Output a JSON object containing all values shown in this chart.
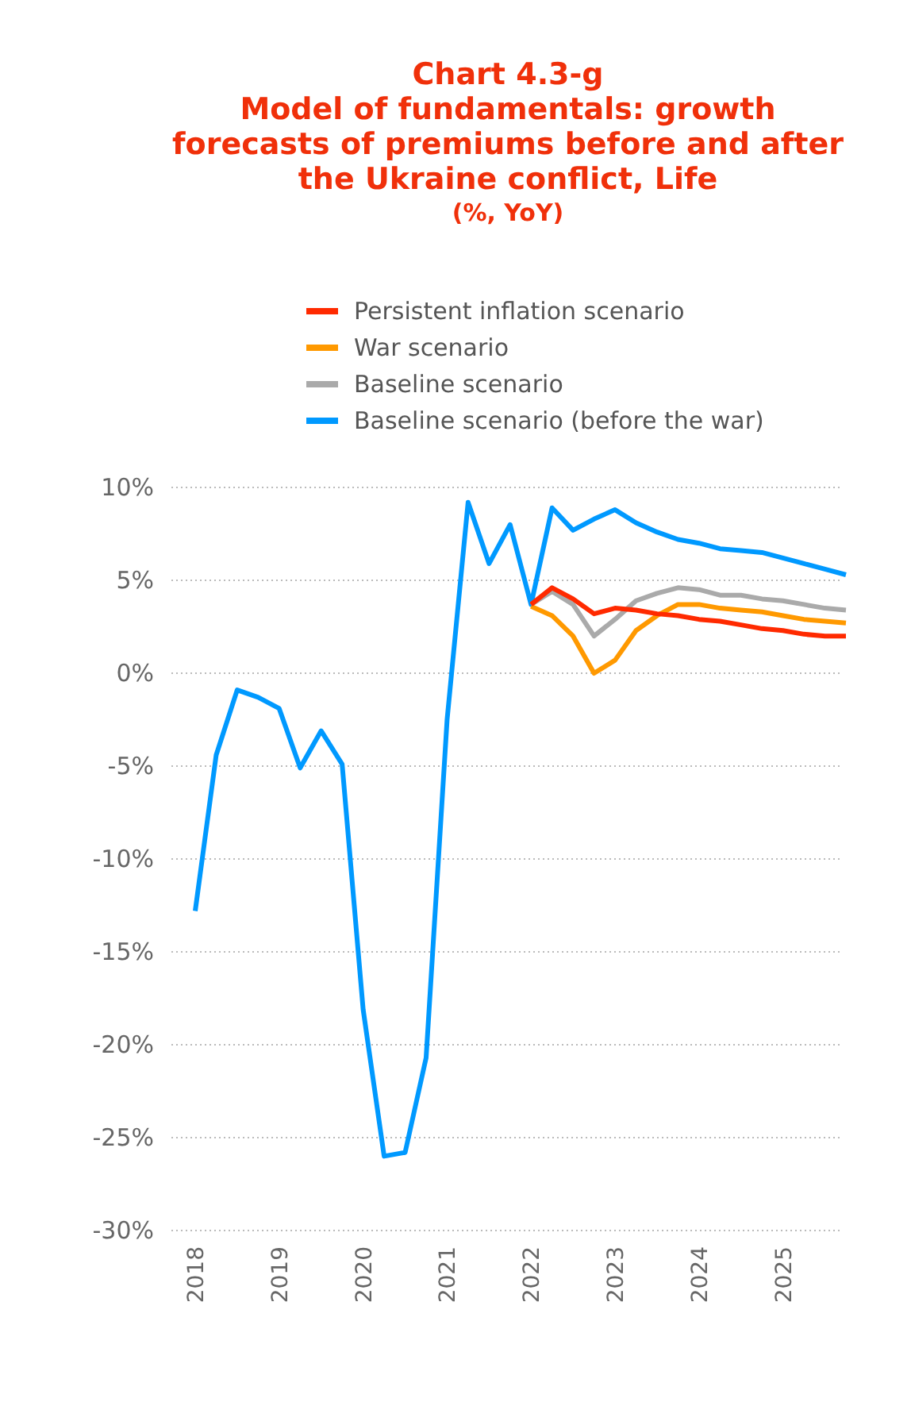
{
  "chart_data": {
    "type": "line",
    "title": "Chart 4.3-g\nModel of fundamentals: growth\nforecasts of premiums before and after\nthe Ukraine conflict, Life",
    "subtitle": "(%, YoY)",
    "categories": [
      "2018",
      null,
      null,
      null,
      "2019",
      null,
      null,
      null,
      "2020",
      null,
      null,
      null,
      "2021",
      null,
      null,
      null,
      "2022",
      null,
      null,
      null,
      "2023",
      null,
      null,
      null,
      "2024",
      null,
      null,
      null,
      "2025",
      null,
      null,
      null
    ],
    "series": [
      {
        "name": "Persistent inflation scenario",
        "color": "#ff2a00",
        "values": [
          null,
          null,
          null,
          null,
          null,
          null,
          null,
          null,
          null,
          null,
          null,
          null,
          null,
          null,
          null,
          null,
          3.7,
          4.6,
          4.0,
          3.2,
          3.5,
          3.4,
          3.2,
          3.1,
          2.9,
          2.8,
          2.6,
          2.4,
          2.3,
          2.1,
          2.0,
          2.0
        ]
      },
      {
        "name": "War scenario",
        "color": "#ff9900",
        "values": [
          null,
          null,
          null,
          null,
          null,
          null,
          null,
          null,
          null,
          null,
          null,
          null,
          null,
          null,
          null,
          null,
          3.6,
          3.1,
          2.0,
          0.0,
          0.7,
          2.3,
          3.1,
          3.7,
          3.7,
          3.5,
          3.4,
          3.3,
          3.1,
          2.9,
          2.8,
          2.7
        ]
      },
      {
        "name": "Baseline scenario",
        "color": "#aaaaaa",
        "values": [
          null,
          null,
          null,
          null,
          null,
          null,
          null,
          null,
          null,
          null,
          null,
          null,
          null,
          null,
          null,
          null,
          3.7,
          4.4,
          3.7,
          2.0,
          2.9,
          3.9,
          4.3,
          4.6,
          4.5,
          4.2,
          4.2,
          4.0,
          3.9,
          3.7,
          3.5,
          3.4
        ]
      },
      {
        "name": "Baseline scenario (before the war)",
        "color": "#0099ff",
        "values": [
          -12.8,
          -4.4,
          -0.9,
          -1.3,
          -1.9,
          -5.1,
          -3.1,
          -4.9,
          -18.1,
          -26.0,
          -25.8,
          -20.7,
          -2.5,
          9.2,
          5.9,
          8.0,
          3.7,
          8.9,
          7.7,
          8.3,
          8.8,
          8.1,
          7.6,
          7.2,
          7.0,
          6.7,
          6.6,
          6.5,
          6.2,
          5.9,
          5.6,
          5.3
        ]
      }
    ],
    "ylim": [
      -30,
      10
    ],
    "yticks": [
      {
        "value": 10,
        "label": "10%"
      },
      {
        "value": 5,
        "label": "5%"
      },
      {
        "value": 0,
        "label": "0%"
      },
      {
        "value": -5,
        "label": "-5%"
      },
      {
        "value": -10,
        "label": "-10%"
      },
      {
        "value": -15,
        "label": "-15%"
      },
      {
        "value": -20,
        "label": "-20%"
      },
      {
        "value": -25,
        "label": "-25%"
      },
      {
        "value": -30,
        "label": "-30%"
      }
    ],
    "grid": "y",
    "legend": "top"
  }
}
